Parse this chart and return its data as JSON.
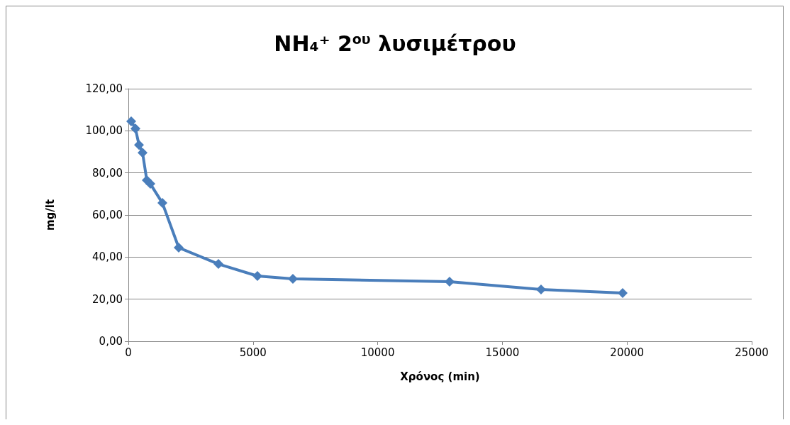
{
  "chart_data": {
    "type": "line",
    "title": "NH₄⁺ 2$^{ου}$ λυσιμέτρου",
    "xlabel": "Χρόνος (min)",
    "ylabel": "mg/lt",
    "x": [
      114,
      285,
      427,
      569,
      740,
      882,
      1365,
      2020,
      3612,
      5176,
      6598,
      12883,
      16552,
      19823
    ],
    "series": [
      {
        "color": "#4a7ebb",
        "values": [
          104.5,
          101,
          93.3,
          89.6,
          76.5,
          74.8,
          65.7,
          44.5,
          36.7,
          31.0,
          29.7,
          28.3,
          24.6,
          22.9
        ]
      }
    ],
    "xlim": [
      0,
      25000
    ],
    "xticks": [
      0,
      5000,
      10000,
      15000,
      20000,
      25000
    ],
    "ylim": [
      0,
      120
    ],
    "yticks": [
      {
        "value": 0,
        "label": "0,00"
      },
      {
        "value": 20,
        "label": "20,00"
      },
      {
        "value": 40,
        "label": "40,00"
      },
      {
        "value": 60,
        "label": "60,00"
      },
      {
        "value": 80,
        "label": "80,00"
      },
      {
        "value": 100,
        "label": "100,00"
      },
      {
        "value": 120,
        "label": "120,00"
      }
    ],
    "grid": "y",
    "marker": "diamond",
    "line_style": "solid"
  }
}
